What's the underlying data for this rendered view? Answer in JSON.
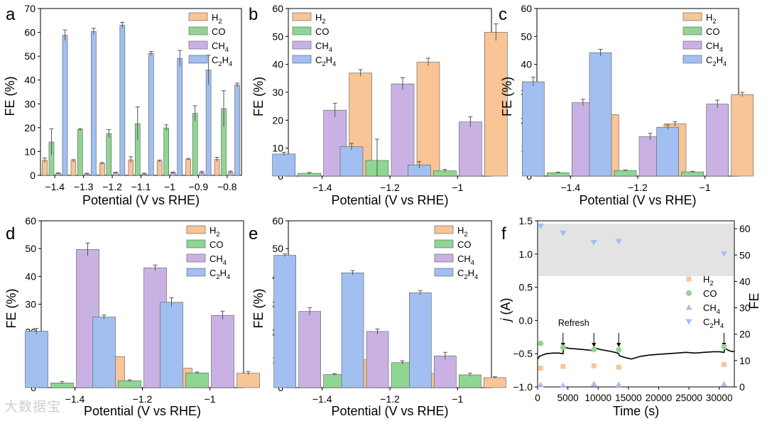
{
  "chart_data": [
    {
      "panel": "a",
      "type": "bar",
      "xlabel": "Potential (V vs RHE)",
      "ylabel": "FE (%)",
      "categories": [
        "-1.4",
        "-1.3",
        "-1.2",
        "-1.1",
        "-1",
        "-0.9",
        "-0.8"
      ],
      "ylim": [
        0,
        70
      ],
      "yticks": [
        0,
        10,
        20,
        30,
        40,
        50,
        60,
        70
      ],
      "legend_position": "top-right",
      "series": [
        {
          "name": "H2",
          "legend": [
            "H",
            "2",
            ""
          ],
          "color": "#F9C496",
          "values": [
            6.3,
            6.1,
            5.0,
            6.5,
            6.0,
            6.7,
            6.7
          ],
          "errors": [
            1.0,
            0.5,
            0.4,
            1.3,
            0.4,
            0.4,
            0.9
          ]
        },
        {
          "name": "CO",
          "legend": [
            "CO",
            "",
            ""
          ],
          "color": "#8FD693",
          "values": [
            14.0,
            19.2,
            17.5,
            21.7,
            19.9,
            26.0,
            28.0
          ],
          "errors": [
            5.5,
            0.4,
            1.7,
            7.0,
            1.3,
            3.2,
            7.5
          ]
        },
        {
          "name": "CH4",
          "legend": [
            "CH",
            "4",
            ""
          ],
          "color": "#C9B2E3",
          "values": [
            0.8,
            0.6,
            1.0,
            0.6,
            1.1,
            1.2,
            1.3
          ],
          "errors": [
            0.3,
            0.3,
            0.3,
            0.3,
            0.3,
            0.5,
            0.5
          ]
        },
        {
          "name": "C2H4",
          "legend": [
            "C",
            "2",
            "H",
            "4"
          ],
          "color": "#A1BFF1",
          "values": [
            58.8,
            60.4,
            63.0,
            51.2,
            49.1,
            44.2,
            37.9
          ],
          "errors": [
            2.2,
            1.3,
            1.2,
            0.8,
            3.3,
            6.2,
            0.8
          ]
        }
      ]
    },
    {
      "panel": "b",
      "type": "bar",
      "xlabel": "Potential (V vs RHE)",
      "ylabel": "FE (%)",
      "categories": [
        "-1.4",
        "-1.2",
        "-1"
      ],
      "ylim": [
        0,
        60
      ],
      "yticks": [
        0,
        10,
        20,
        30,
        40,
        50,
        60
      ],
      "legend_position": "top-left",
      "series": [
        {
          "name": "C2H4",
          "color": "#A1BFF1",
          "values": [
            7.9,
            10.5,
            4.0
          ],
          "errors": [
            0.6,
            1.2,
            1.2
          ]
        },
        {
          "name": "CO",
          "color": "#8FD693",
          "values": [
            1.0,
            5.6,
            1.9
          ],
          "errors": [
            0.3,
            7.6,
            0.5
          ]
        },
        {
          "name": "CH4",
          "color": "#C9B2E3",
          "values": [
            23.6,
            33.0,
            19.4
          ],
          "errors": [
            2.5,
            2.2,
            1.8
          ]
        },
        {
          "name": "H2",
          "color": "#F9C496",
          "values": [
            36.9,
            40.8,
            51.5
          ],
          "errors": [
            1.2,
            1.4,
            3.0
          ]
        }
      ],
      "legend": [
        [
          "H",
          "2",
          ""
        ],
        [
          "CO",
          "",
          ""
        ],
        [
          "CH",
          "4",
          ""
        ],
        [
          "C",
          "2",
          "H",
          "4"
        ]
      ]
    },
    {
      "panel": "c",
      "type": "bar",
      "xlabel": "Potential (V vs RHE)",
      "ylabel": "FE (%)",
      "categories": [
        "-1.4",
        "-1.2",
        "-1"
      ],
      "ylim": [
        0,
        60
      ],
      "yticks": [
        0,
        10,
        20,
        30,
        40,
        50,
        60
      ],
      "legend_position": "top-right",
      "series": [
        {
          "name": "C2H4",
          "color": "#A1BFF1",
          "values": [
            33.8,
            44.2,
            17.5
          ],
          "errors": [
            1.6,
            1.2,
            0.8
          ]
        },
        {
          "name": "CO",
          "color": "#8FD693",
          "values": [
            1.2,
            2.0,
            1.5
          ],
          "errors": [
            0.2,
            0.2,
            0.2
          ]
        },
        {
          "name": "CH4",
          "color": "#C9B2E3",
          "values": [
            26.3,
            14.1,
            25.8
          ],
          "errors": [
            1.2,
            1.2,
            1.4
          ]
        },
        {
          "name": "H2",
          "color": "#F9C496",
          "values": [
            22.0,
            18.7,
            29.2
          ],
          "errors": [
            1.0,
            0.8,
            0.8
          ]
        }
      ],
      "legend": [
        [
          "H",
          "2",
          ""
        ],
        [
          "CO",
          "",
          ""
        ],
        [
          "CH",
          "4",
          ""
        ],
        [
          "C",
          "2",
          "H",
          "4"
        ]
      ]
    },
    {
      "panel": "d",
      "type": "bar",
      "xlabel": "Potential (V vs RHE)",
      "ylabel": "FE (%)",
      "categories": [
        "-1.4",
        "-1.2",
        "-1"
      ],
      "ylim": [
        0,
        60
      ],
      "yticks": [
        0,
        10,
        20,
        30,
        40,
        50,
        60
      ],
      "legend_position": "top-right",
      "series": [
        {
          "name": "C2H4",
          "color": "#A1BFF1",
          "values": [
            20.3,
            25.4,
            30.7
          ],
          "errors": [
            1.0,
            0.7,
            1.6
          ]
        },
        {
          "name": "CO",
          "color": "#8FD693",
          "values": [
            1.7,
            2.5,
            5.3
          ],
          "errors": [
            0.5,
            0.3,
            0.3
          ]
        },
        {
          "name": "CH4",
          "color": "#C9B2E3",
          "values": [
            49.7,
            43.1,
            26.0
          ],
          "errors": [
            2.3,
            1.0,
            1.5
          ]
        },
        {
          "name": "H2",
          "color": "#F9C496",
          "values": [
            11.2,
            7.0,
            5.2
          ],
          "errors": [
            0.8,
            1.1,
            0.6
          ]
        }
      ],
      "legend": [
        [
          "H",
          "2",
          ""
        ],
        [
          "CO",
          "",
          ""
        ],
        [
          "CH",
          "4",
          ""
        ],
        [
          "C",
          "2",
          "H",
          "4"
        ]
      ]
    },
    {
      "panel": "e",
      "type": "bar",
      "xlabel": "Potential (V vs RHE)",
      "ylabel": "FE (%)",
      "categories": [
        "-1.4",
        "-1.2",
        "-1"
      ],
      "ylim": [
        0,
        60
      ],
      "yticks": [
        0,
        10,
        20,
        30,
        40,
        50,
        60
      ],
      "legend_position": "top-right",
      "series": [
        {
          "name": "C2H4",
          "color": "#A1BFF1",
          "values": [
            47.6,
            41.3,
            34.1
          ],
          "errors": [
            0.5,
            0.8,
            0.8
          ]
        },
        {
          "name": "CH4",
          "color": "#C9B2E3",
          "values": [
            27.4,
            20.2,
            11.4
          ],
          "errors": [
            1.4,
            0.9,
            1.3
          ]
        },
        {
          "name": "CO",
          "color": "#8FD693",
          "values": [
            4.7,
            9.0,
            4.6
          ],
          "errors": [
            0.3,
            0.6,
            0.6
          ]
        },
        {
          "name": "H2",
          "color": "#F9C496",
          "values": [
            10.0,
            5.1,
            3.6
          ],
          "errors": [
            0.7,
            0.8,
            0.3
          ]
        }
      ],
      "legend": [
        [
          "H",
          "2",
          ""
        ],
        [
          "CO",
          "",
          ""
        ],
        [
          "CH",
          "4",
          ""
        ],
        [
          "C",
          "2",
          "H",
          "4"
        ]
      ]
    },
    {
      "panel": "f",
      "type": "scatter",
      "xlabel": "Time (s)",
      "ylabel_left": [
        "j",
        " (A)"
      ],
      "ylabel_right": "FE",
      "xlim": [
        0,
        32500
      ],
      "xticks": [
        0,
        5000,
        10000,
        15000,
        20000,
        25000,
        30000
      ],
      "ylim_left": [
        -1.0,
        1.5
      ],
      "yticks_left": [
        "-1.0",
        "-0.5",
        "0.0",
        "0.5",
        "1.0",
        "1.5"
      ],
      "ylim_right": [
        0,
        63
      ],
      "yticks_right": [
        0,
        10,
        20,
        30,
        40,
        50,
        60
      ],
      "shaded_band_right": [
        42,
        63
      ],
      "annotation": "Refresh",
      "refresh_times": [
        4200,
        9300,
        13400,
        30800
      ],
      "legend_position": "right",
      "series": [
        {
          "name": "H2",
          "legend": [
            "H",
            "2",
            ""
          ],
          "color": "#F9C496",
          "marker": "square",
          "x": [
            500,
            4200,
            9300,
            13400,
            30800
          ],
          "y": [
            7.1,
            7.8,
            8.0,
            7.5,
            8.5
          ]
        },
        {
          "name": "CO",
          "legend": [
            "CO",
            "",
            ""
          ],
          "color": "#8FD693",
          "marker": "circle",
          "x": [
            500,
            4200,
            9300,
            13400,
            30800
          ],
          "y": [
            16.5,
            15.0,
            14.2,
            14.0,
            15.2
          ]
        },
        {
          "name": "CH4",
          "legend": [
            "CH",
            "4",
            ""
          ],
          "color": "#C9B2E3",
          "marker": "triangle-up",
          "x": [
            500,
            4200,
            9300,
            13400,
            30800
          ],
          "y": [
            0.8,
            0.6,
            1.2,
            0.9,
            1.1
          ]
        },
        {
          "name": "C2H4",
          "legend": [
            "C",
            "2",
            "H",
            "4"
          ],
          "color": "#A1BFF1",
          "marker": "triangle-down",
          "x": [
            500,
            4200,
            9300,
            13400,
            30800
          ],
          "y": [
            61.0,
            58.3,
            54.8,
            55.2,
            50.5
          ]
        }
      ],
      "current_trace": {
        "color": "#000000",
        "x": [
          0,
          300,
          800,
          1500,
          2500,
          3500,
          4200,
          4300,
          5200,
          6500,
          7800,
          8800,
          9300,
          9400,
          10500,
          11800,
          12800,
          13400,
          13500,
          14500,
          15500,
          17000,
          18500,
          20000,
          21500,
          23000,
          24500,
          26000,
          27500,
          29000,
          30000,
          30800,
          30900,
          31800,
          32500
        ],
        "y": [
          -0.58,
          -0.54,
          -0.52,
          -0.5,
          -0.49,
          -0.49,
          -0.5,
          -0.4,
          -0.42,
          -0.43,
          -0.44,
          -0.45,
          -0.46,
          -0.41,
          -0.44,
          -0.46,
          -0.48,
          -0.5,
          -0.53,
          -0.56,
          -0.58,
          -0.54,
          -0.52,
          -0.51,
          -0.5,
          -0.49,
          -0.48,
          -0.49,
          -0.48,
          -0.47,
          -0.47,
          -0.48,
          -0.42,
          -0.46,
          -0.47
        ]
      }
    }
  ],
  "watermark": "大数据宝"
}
